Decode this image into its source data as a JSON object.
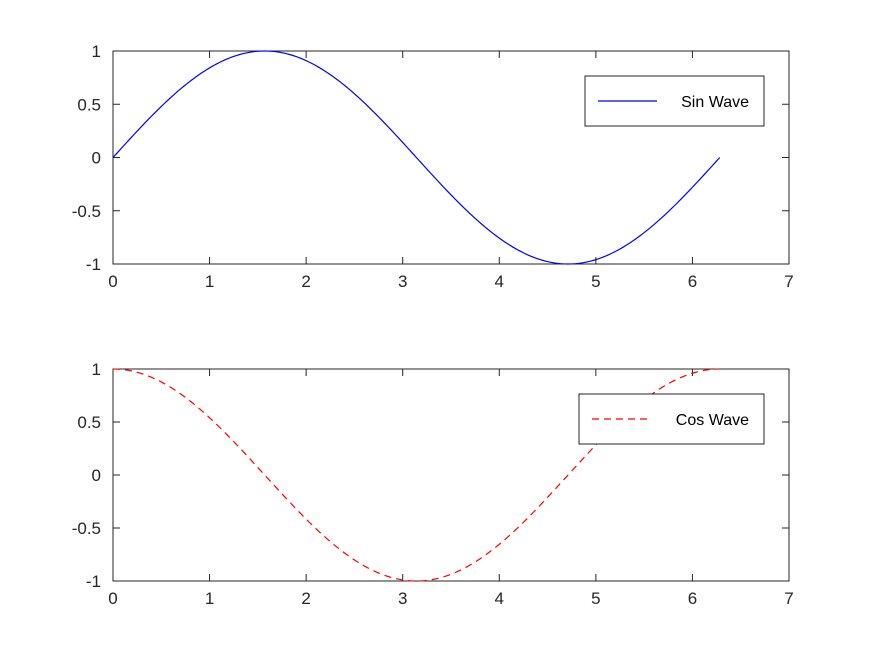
{
  "chart_data": [
    {
      "type": "line",
      "title": "",
      "xlabel": "",
      "ylabel": "",
      "xlim": [
        0,
        7
      ],
      "ylim": [
        -1,
        1
      ],
      "xticks": [
        "0",
        "1",
        "2",
        "3",
        "4",
        "5",
        "6",
        "7"
      ],
      "yticks": [
        "1",
        "0.5",
        "0",
        "-0.5",
        "-1"
      ],
      "grid": false,
      "legend_position": "top-right",
      "series": [
        {
          "name": "Sin Wave",
          "function": "sin",
          "x_range": [
            0,
            6.283
          ],
          "color": "#0000ff",
          "line_style": "solid",
          "x": [
            0,
            0.5,
            1,
            1.5708,
            2,
            2.5,
            3,
            3.1416,
            3.5,
            4,
            4.5,
            4.7124,
            5,
            5.5,
            6,
            6.283
          ],
          "y": [
            0,
            0.479,
            0.841,
            1,
            0.909,
            0.598,
            0.141,
            0,
            -0.351,
            -0.757,
            -0.978,
            -1,
            -0.959,
            -0.706,
            -0.279,
            0
          ]
        }
      ]
    },
    {
      "type": "line",
      "title": "",
      "xlabel": "",
      "ylabel": "",
      "xlim": [
        0,
        7
      ],
      "ylim": [
        -1,
        1
      ],
      "xticks": [
        "0",
        "1",
        "2",
        "3",
        "4",
        "5",
        "6",
        "7"
      ],
      "yticks": [
        "1",
        "0.5",
        "0",
        "-0.5",
        "-1"
      ],
      "grid": false,
      "legend_position": "top-right",
      "series": [
        {
          "name": "Cos Wave",
          "function": "cos",
          "x_range": [
            0,
            6.283
          ],
          "color": "#ff0000",
          "line_style": "dashed",
          "x": [
            0,
            0.5,
            1,
            1.5708,
            2,
            2.5,
            3,
            3.1416,
            3.5,
            4,
            4.5,
            4.7124,
            5,
            5.5,
            6,
            6.283
          ],
          "y": [
            1,
            0.878,
            0.54,
            0,
            -0.416,
            -0.801,
            -0.99,
            -1,
            -0.936,
            -0.654,
            -0.211,
            0,
            0.284,
            0.709,
            0.96,
            1
          ]
        }
      ]
    }
  ]
}
